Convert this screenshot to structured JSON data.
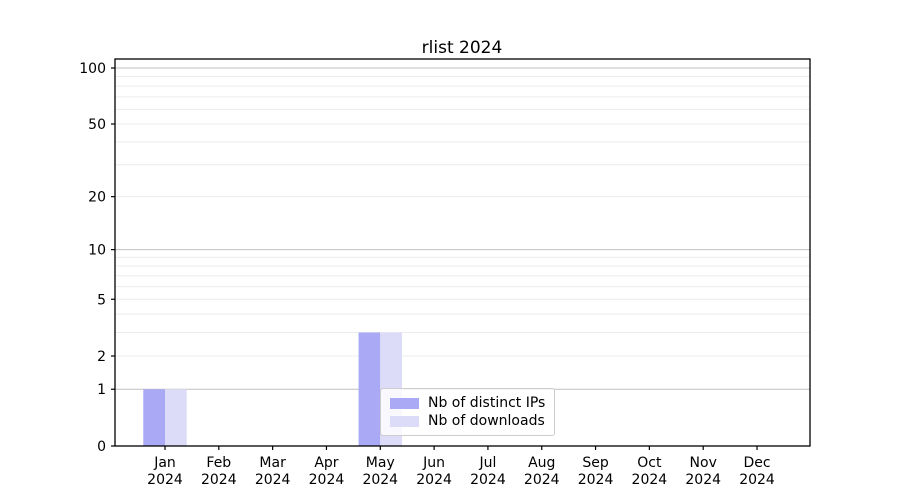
{
  "chart_data": {
    "type": "bar",
    "title": "rlist 2024",
    "categories": [
      "Jan",
      "Feb",
      "Mar",
      "Apr",
      "May",
      "Jun",
      "Jul",
      "Aug",
      "Sep",
      "Oct",
      "Nov",
      "Dec"
    ],
    "tick_year": "2024",
    "series": [
      {
        "name": "Nb of distinct IPs",
        "color": "#a9a9f5",
        "values": [
          1,
          0,
          0,
          0,
          3,
          0,
          0,
          0,
          0,
          0,
          0,
          0
        ]
      },
      {
        "name": "Nb of downloads",
        "color": "#dcdcf8",
        "values": [
          1,
          0,
          0,
          0,
          3,
          0,
          0,
          0,
          0,
          0,
          0,
          0
        ]
      }
    ],
    "yscale": "log1p",
    "yticks": [
      0,
      1,
      2,
      5,
      10,
      20,
      50,
      100
    ],
    "ylim": [
      0,
      112
    ],
    "xlabel": "",
    "ylabel": "",
    "grid": "horizontal",
    "legend_position": "lower-center-inside",
    "colors": {
      "background": "#ffffff",
      "axis": "#000000",
      "major_grid": "#c0c0c0",
      "minor_grid": "#ececec",
      "text": "#000000"
    }
  }
}
